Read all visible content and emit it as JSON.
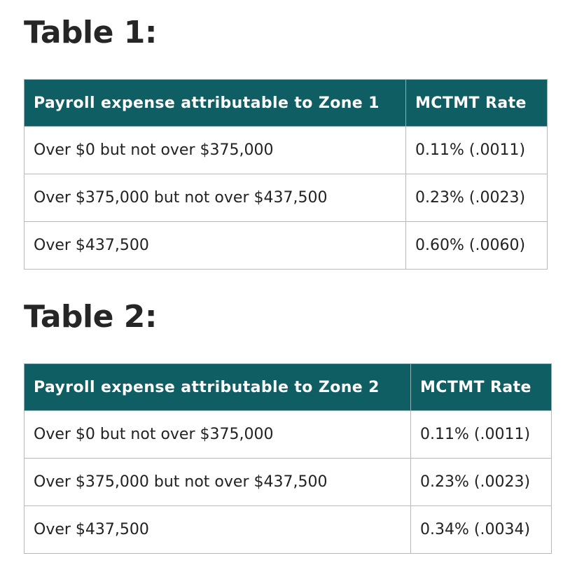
{
  "table1": {
    "title": "Table 1:",
    "headers": [
      "Payroll expense attributable to Zone 1",
      "MCTMT Rate"
    ],
    "rows": [
      [
        "Over $0 but not over $375,000",
        "0.11% (.0011)"
      ],
      [
        "Over $375,000 but not over $437,500",
        "0.23% (.0023)"
      ],
      [
        "Over $437,500",
        "0.60% (.0060)"
      ]
    ]
  },
  "table2": {
    "title": "Table 2:",
    "headers": [
      "Payroll expense attributable to Zone 2",
      "MCTMT Rate"
    ],
    "rows": [
      [
        "Over $0 but not over $375,000",
        "0.11% (.0011)"
      ],
      [
        "Over $375,000 but not over $437,500",
        "0.23% (.0023)"
      ],
      [
        "Over $437,500",
        "0.34% (.0034)"
      ]
    ]
  },
  "colors": {
    "header_bg": "#0f5e63",
    "header_text": "#ffffff",
    "border": "#b9b9b9"
  }
}
